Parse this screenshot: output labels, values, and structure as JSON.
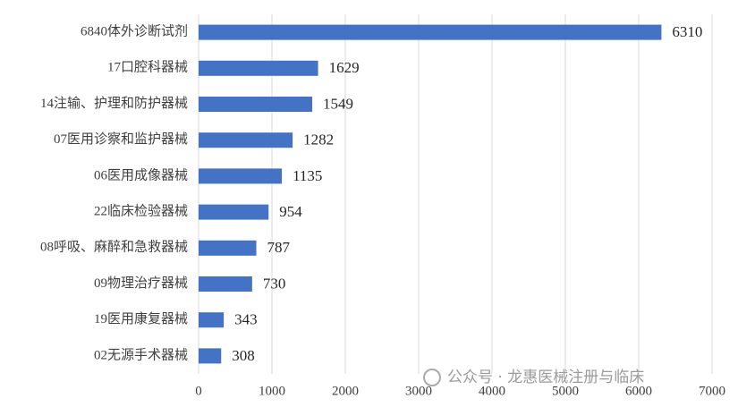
{
  "chart_data": {
    "type": "bar",
    "orientation": "horizontal",
    "categories": [
      "6840体外诊断试剂",
      "17口腔科器械",
      "14注输、护理和防护器械",
      "07医用诊察和监护器械",
      "06医用成像器械",
      "22临床检验器械",
      "08呼吸、麻醉和急救器械",
      "09物理治疗器械",
      "19医用康复器械",
      "02无源手术器械"
    ],
    "values": [
      6310,
      1629,
      1549,
      1282,
      1135,
      954,
      787,
      730,
      343,
      308
    ],
    "color": "#4472c4",
    "xlim": [
      0,
      7000
    ],
    "xticks": [
      0,
      1000,
      2000,
      3000,
      4000,
      5000,
      6000,
      7000
    ],
    "grid": true,
    "watermark": "公众号 · 龙惠医械注册与临床"
  }
}
